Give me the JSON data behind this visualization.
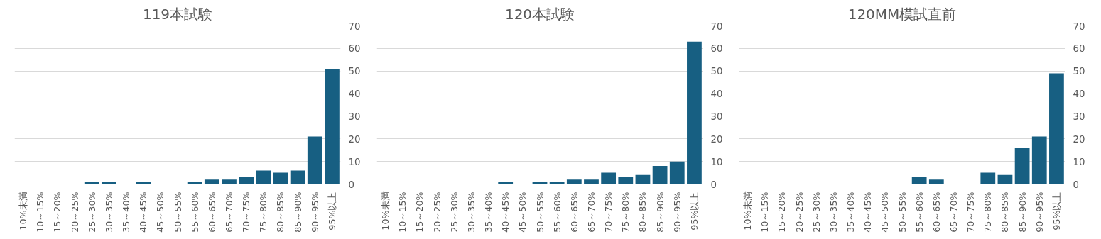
{
  "chart_data": [
    {
      "type": "bar",
      "title": "119本試験",
      "categories": [
        "10%未満",
        "10～15%",
        "15～20%",
        "20～25%",
        "25～30%",
        "30～35%",
        "35～40%",
        "40～45%",
        "45～50%",
        "50～55%",
        "55～60%",
        "60～65%",
        "65～70%",
        "70～75%",
        "75～80%",
        "80～85%",
        "85～90%",
        "90～95%",
        "95%以上"
      ],
      "values": [
        0,
        0,
        0,
        0,
        1,
        1,
        0,
        1,
        0,
        0,
        1,
        2,
        2,
        3,
        6,
        5,
        6,
        21,
        51
      ],
      "color": "#175f82",
      "ylim": [
        0,
        70
      ],
      "yticks": [
        0,
        10,
        20,
        30,
        40,
        50,
        60,
        70
      ],
      "grid": "y"
    },
    {
      "type": "bar",
      "title": "120本試験",
      "categories": [
        "10%未満",
        "10～15%",
        "15～20%",
        "20～25%",
        "25～30%",
        "30～35%",
        "35～40%",
        "40～45%",
        "45～50%",
        "50～55%",
        "55～60%",
        "60～65%",
        "65～70%",
        "70～75%",
        "75～80%",
        "80～85%",
        "85～90%",
        "90～95%",
        "95%以上"
      ],
      "values": [
        0,
        0,
        0,
        0,
        0,
        0,
        0,
        1,
        0,
        1,
        1,
        2,
        2,
        5,
        3,
        4,
        8,
        10,
        63
      ],
      "color": "#175f82",
      "ylim": [
        0,
        70
      ],
      "yticks": [
        0,
        10,
        20,
        30,
        40,
        50,
        60,
        70
      ],
      "grid": "y"
    },
    {
      "type": "bar",
      "title": "120MM模試直前",
      "categories": [
        "10%未満",
        "10～15%",
        "15～20%",
        "20～25%",
        "25～30%",
        "30～35%",
        "35～40%",
        "40～45%",
        "45～50%",
        "50～55%",
        "55～60%",
        "60～65%",
        "65～70%",
        "70～75%",
        "75～80%",
        "80～85%",
        "85～90%",
        "90～95%",
        "95%以上"
      ],
      "values": [
        0,
        0,
        0,
        0,
        0,
        0,
        0,
        0,
        0,
        0,
        3,
        2,
        0,
        0,
        5,
        4,
        16,
        21,
        49
      ],
      "color": "#175f82",
      "ylim": [
        0,
        70
      ],
      "yticks": [
        0,
        10,
        20,
        30,
        40,
        50,
        60,
        70
      ],
      "grid": "y"
    }
  ]
}
